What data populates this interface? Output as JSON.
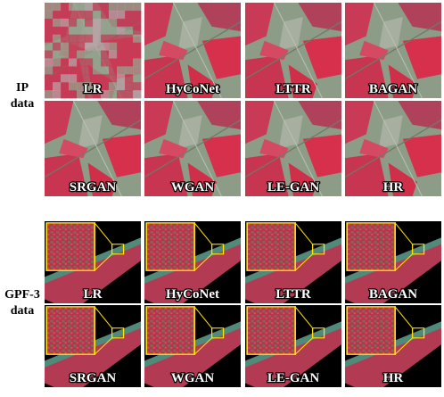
{
  "ip": {
    "label": [
      "IP",
      "data"
    ],
    "panels": [
      "LR",
      "HyCoNet",
      "LTTR",
      "BAGAN",
      "SRGAN",
      "WGAN",
      "LE-GAN",
      "HR"
    ]
  },
  "gpf3": {
    "label": [
      "GPF-3",
      "data"
    ],
    "panels": [
      "LR",
      "HyCoNet",
      "LTTR",
      "BAGAN",
      "SRGAN",
      "WGAN",
      "LE-GAN",
      "HR"
    ]
  }
}
